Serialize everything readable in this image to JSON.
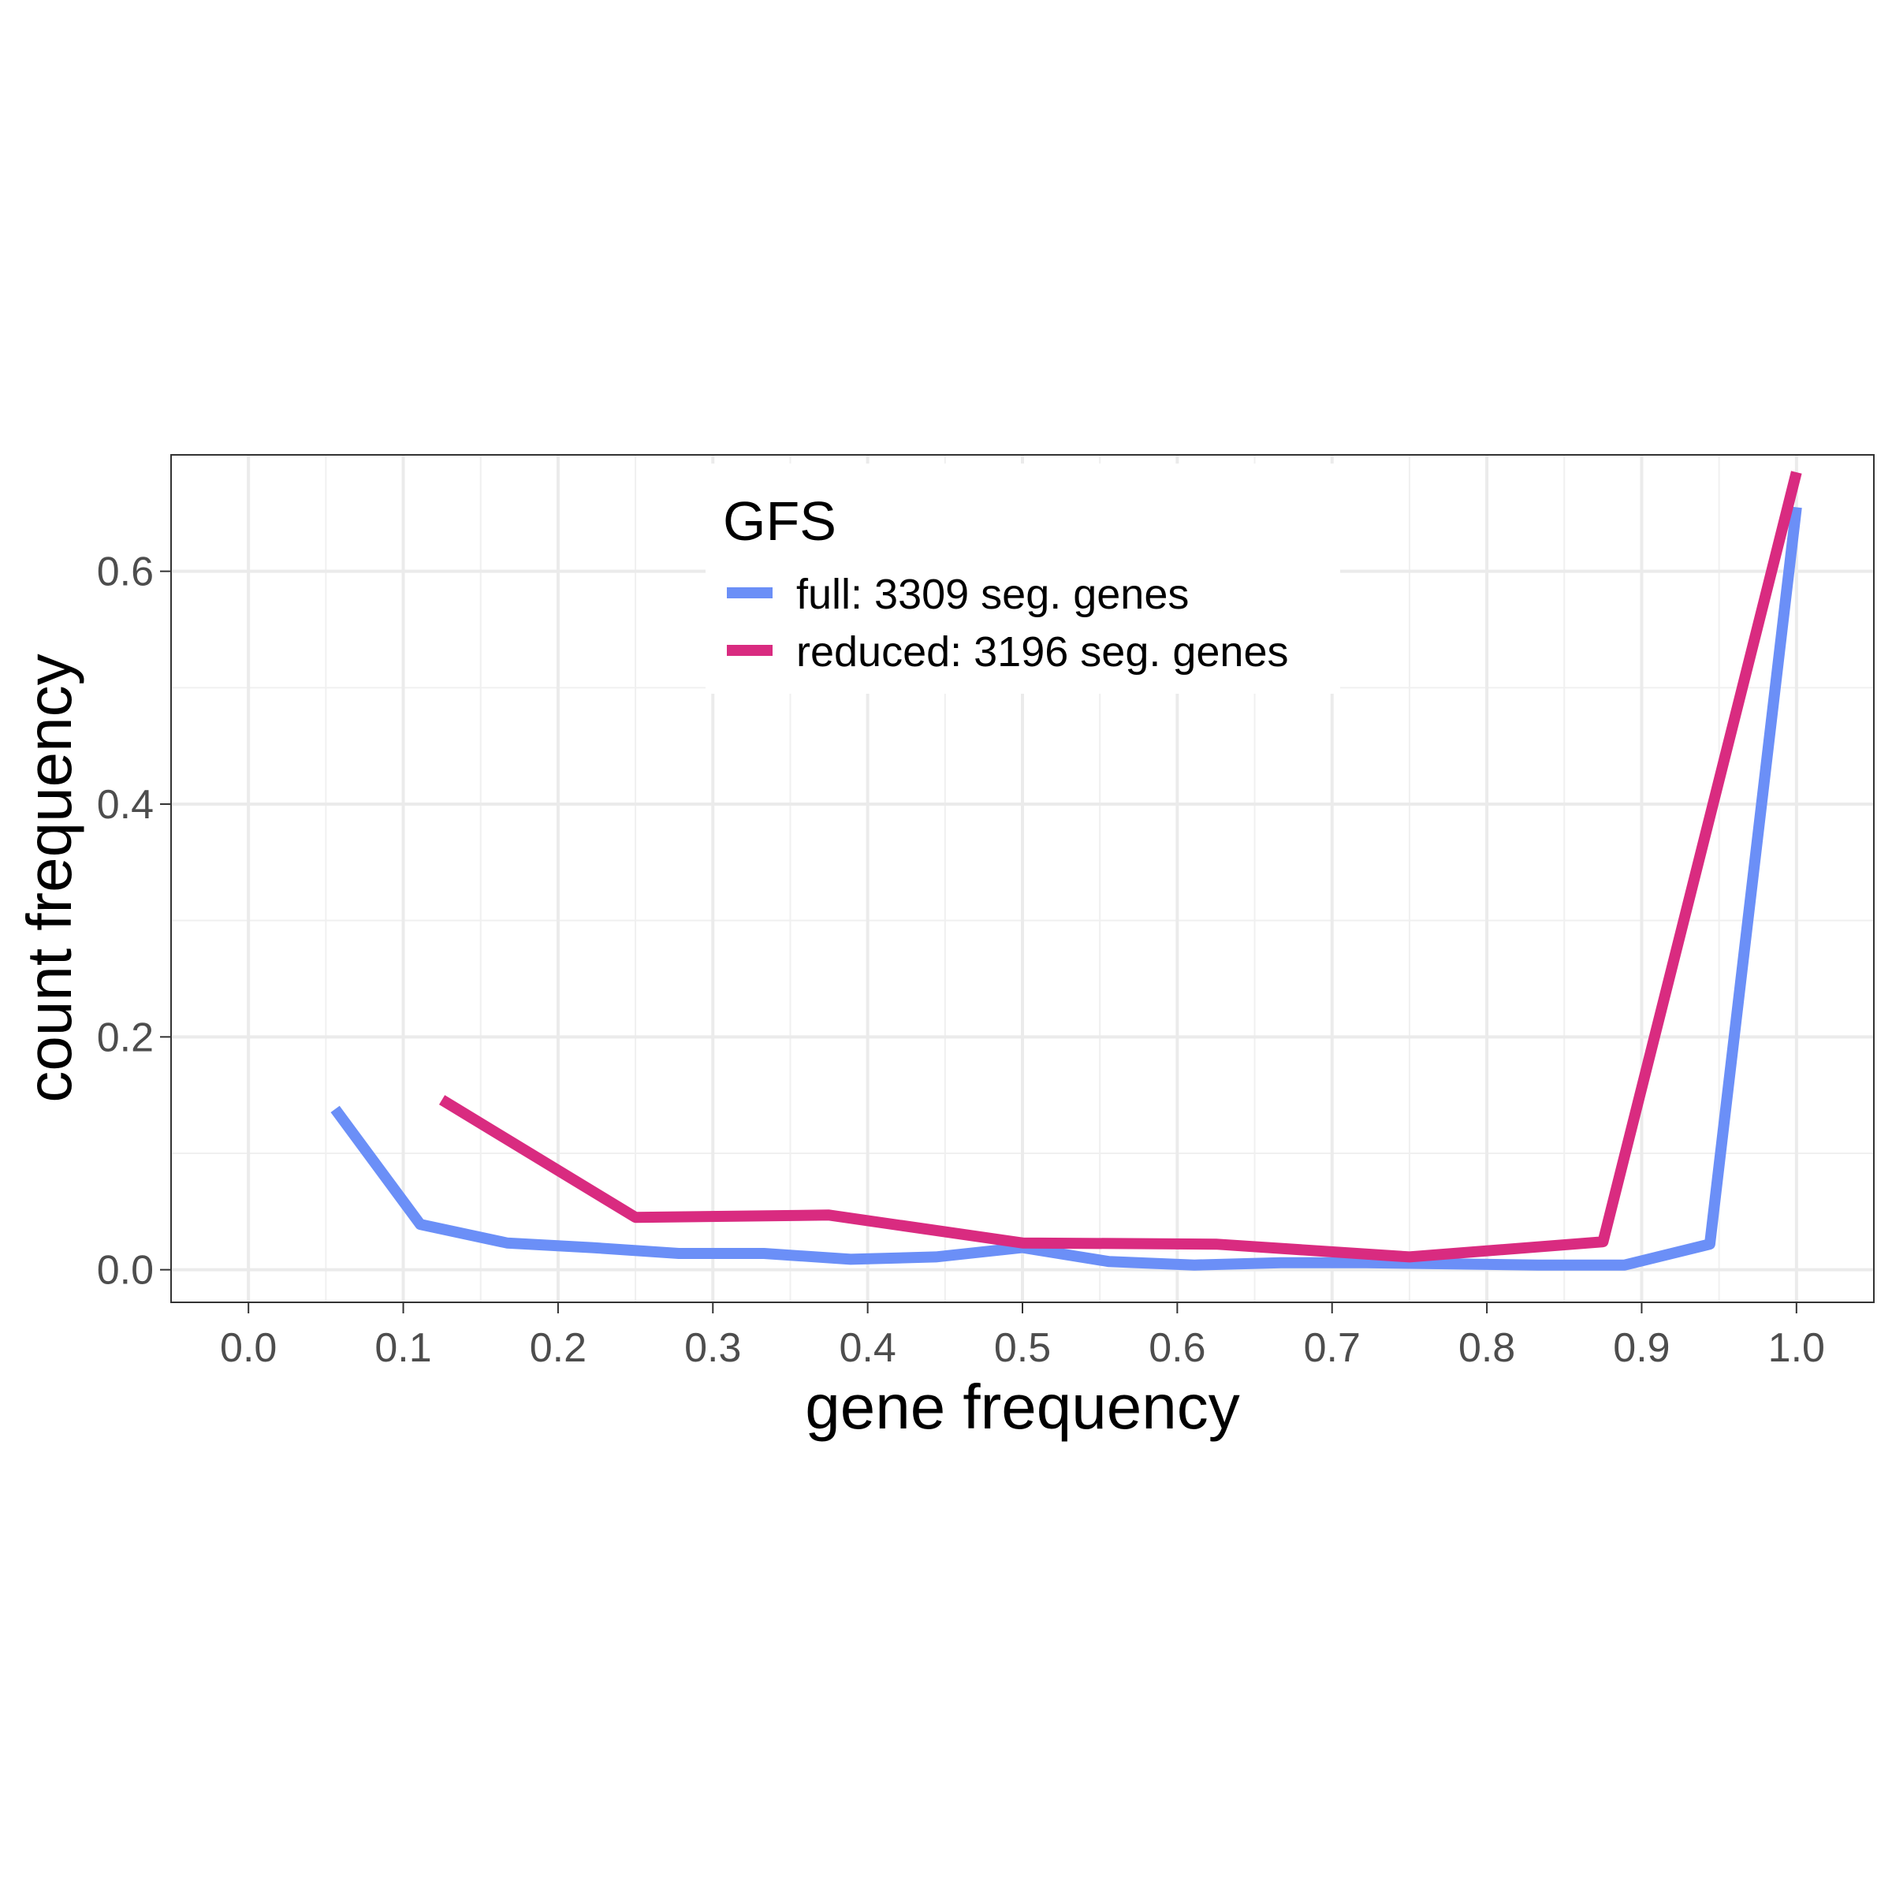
{
  "chart_data": {
    "type": "line",
    "xlabel": "gene frequency",
    "ylabel": "count frequency",
    "xlim": [
      -0.05,
      1.05
    ],
    "ylim": [
      -0.028,
      0.7
    ],
    "x_ticks": [
      0.0,
      0.1,
      0.2,
      0.3,
      0.4,
      0.5,
      0.6,
      0.7,
      0.8,
      0.9,
      1.0
    ],
    "x_tick_labels": [
      "0.0",
      "0.1",
      "0.2",
      "0.3",
      "0.4",
      "0.5",
      "0.6",
      "0.7",
      "0.8",
      "0.9",
      "1.0"
    ],
    "y_ticks": [
      0.0,
      0.2,
      0.4,
      0.6
    ],
    "y_tick_labels": [
      "0.0",
      "0.2",
      "0.4",
      "0.6"
    ],
    "grid": true,
    "legend": {
      "title": "GFS",
      "placement": "top-center"
    },
    "series": [
      {
        "name": "full: 3309 seg. genes",
        "color": "#6b8ff7",
        "x": [
          0.056,
          0.111,
          0.167,
          0.222,
          0.278,
          0.333,
          0.389,
          0.444,
          0.5,
          0.556,
          0.611,
          0.667,
          0.722,
          0.778,
          0.833,
          0.889,
          0.944,
          1.0
        ],
        "y": [
          0.138,
          0.039,
          0.023,
          0.019,
          0.014,
          0.014,
          0.009,
          0.011,
          0.019,
          0.007,
          0.004,
          0.006,
          0.006,
          0.005,
          0.004,
          0.004,
          0.022,
          0.655
        ]
      },
      {
        "name": "reduced: 3196 seg. genes",
        "color": "#d92b80",
        "x": [
          0.125,
          0.25,
          0.375,
          0.5,
          0.625,
          0.75,
          0.875,
          1.0
        ],
        "y": [
          0.146,
          0.045,
          0.047,
          0.023,
          0.022,
          0.011,
          0.024,
          0.685
        ]
      }
    ]
  }
}
